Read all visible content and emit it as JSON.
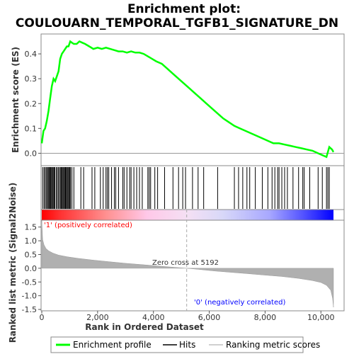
{
  "chart_data": {
    "type": "line",
    "title_line1": "Enrichment plot:",
    "title_line2": "COULOUARN_TEMPORAL_TGFB1_SIGNATURE_DN",
    "top_panel": {
      "ylabel": "Enrichment score (ES)",
      "ylim": [
        -0.05,
        0.48
      ],
      "yticks": [
        0.0,
        0.1,
        0.2,
        0.3,
        0.4
      ],
      "ytick_labels": [
        "0.0",
        "0.1",
        "0.2",
        "0.3",
        "0.4"
      ],
      "series": [
        {
          "name": "Enrichment profile",
          "color": "#00ff00",
          "x": [
            0,
            60,
            120,
            180,
            240,
            300,
            360,
            420,
            480,
            540,
            600,
            660,
            720,
            780,
            840,
            900,
            960,
            1020,
            1080,
            1150,
            1250,
            1350,
            1450,
            1550,
            1700,
            1850,
            2000,
            2150,
            2300,
            2450,
            2600,
            2750,
            2900,
            3050,
            3200,
            3350,
            3500,
            3650,
            3800,
            3950,
            4100,
            4300,
            4500,
            4700,
            4900,
            5100,
            5300,
            5500,
            5700,
            5900,
            6100,
            6300,
            6500,
            6700,
            6900,
            7100,
            7300,
            7500,
            7700,
            7900,
            8100,
            8300,
            8500,
            8700,
            8900,
            9100,
            9300,
            9500,
            9700,
            9900,
            10100,
            10200,
            10300,
            10400,
            10450
          ],
          "y": [
            0.04,
            0.09,
            0.1,
            0.13,
            0.17,
            0.22,
            0.27,
            0.3,
            0.29,
            0.31,
            0.33,
            0.38,
            0.4,
            0.41,
            0.42,
            0.43,
            0.43,
            0.45,
            0.445,
            0.44,
            0.44,
            0.45,
            0.445,
            0.44,
            0.43,
            0.42,
            0.425,
            0.42,
            0.425,
            0.42,
            0.415,
            0.41,
            0.41,
            0.405,
            0.41,
            0.405,
            0.405,
            0.4,
            0.39,
            0.38,
            0.37,
            0.36,
            0.34,
            0.32,
            0.3,
            0.28,
            0.26,
            0.24,
            0.22,
            0.2,
            0.18,
            0.16,
            0.14,
            0.125,
            0.11,
            0.1,
            0.09,
            0.08,
            0.07,
            0.06,
            0.05,
            0.04,
            0.04,
            0.035,
            0.03,
            0.025,
            0.02,
            0.015,
            0.01,
            0.0,
            -0.01,
            -0.015,
            0.025,
            0.015,
            0.005
          ]
        }
      ]
    },
    "hits": [
      30,
      80,
      120,
      160,
      200,
      230,
      260,
      290,
      320,
      350,
      380,
      410,
      440,
      470,
      520,
      560,
      600,
      640,
      680,
      700,
      730,
      760,
      790,
      820,
      850,
      880,
      910,
      940,
      970,
      1000,
      1030,
      1080,
      1150,
      1400,
      1500,
      1800,
      1900,
      2100,
      2200,
      2300,
      2350,
      2400,
      2500,
      2600,
      2650,
      2750,
      2900,
      2950,
      3050,
      3150,
      3200,
      3300,
      3400,
      3500,
      3600,
      3800,
      3850,
      3900,
      4050,
      4150,
      4400,
      4700,
      4900,
      5050,
      5150,
      5400,
      5600,
      5800,
      6300,
      6900,
      7050,
      7200,
      7350,
      7450,
      7650,
      7900,
      8100,
      8250,
      8350,
      8450,
      8500,
      8600,
      8700,
      8800,
      9000,
      9200,
      9350,
      9400,
      9600,
      9900,
      10050,
      10200,
      10250,
      10300
    ],
    "bottom_panel": {
      "ylabel": "Ranked list metric (Signal2Noise)",
      "ylim": [
        -1.55,
        1.75
      ],
      "yticks": [
        -1.5,
        -1.0,
        -0.5,
        0.0,
        0.5,
        1.0,
        1.5
      ],
      "ytick_labels": [
        "-1.5",
        "-1.0",
        "-0.5",
        "0.0",
        "0.5",
        "1.0",
        "1.5"
      ],
      "metric_x": [
        0,
        30,
        80,
        150,
        250,
        400,
        600,
        900,
        1300,
        1800,
        2400,
        3000,
        3600,
        4200,
        4800,
        5192,
        5600,
        6200,
        6800,
        7400,
        8000,
        8600,
        9200,
        9700,
        10000,
        10200,
        10350,
        10420,
        10450
      ],
      "metric_y": [
        1.75,
        1.05,
        0.85,
        0.72,
        0.63,
        0.55,
        0.48,
        0.42,
        0.36,
        0.3,
        0.24,
        0.18,
        0.13,
        0.08,
        0.03,
        0.0,
        -0.04,
        -0.1,
        -0.15,
        -0.2,
        -0.25,
        -0.3,
        -0.37,
        -0.45,
        -0.52,
        -0.62,
        -0.8,
        -1.1,
        -1.42
      ],
      "zero_cross_label": "Zero cross at 5192",
      "zero_cross": 5192,
      "pos_label": "'1' (positively correlated)",
      "neg_label": "'0' (negatively correlated)"
    },
    "xlabel": "Rank in Ordered Dataset",
    "xlim": [
      0,
      10450
    ],
    "xticks": [
      0,
      2000,
      4000,
      6000,
      8000,
      10000
    ],
    "xtick_labels": [
      "0",
      "2,000",
      "4,000",
      "6,000",
      "8,000",
      "10,000"
    ],
    "legend": {
      "items": [
        "Enrichment profile",
        "Hits",
        "Ranking metric scores"
      ],
      "placement": "bottom"
    },
    "colors": {
      "es_line": "#00ff00",
      "hits": "#000000",
      "metric_fill": "#b0b0b0",
      "pos_red": "#ff0000",
      "neg_blue": "#0000ff",
      "pos_label": "#ff0000",
      "neg_label": "#0000ff"
    }
  }
}
